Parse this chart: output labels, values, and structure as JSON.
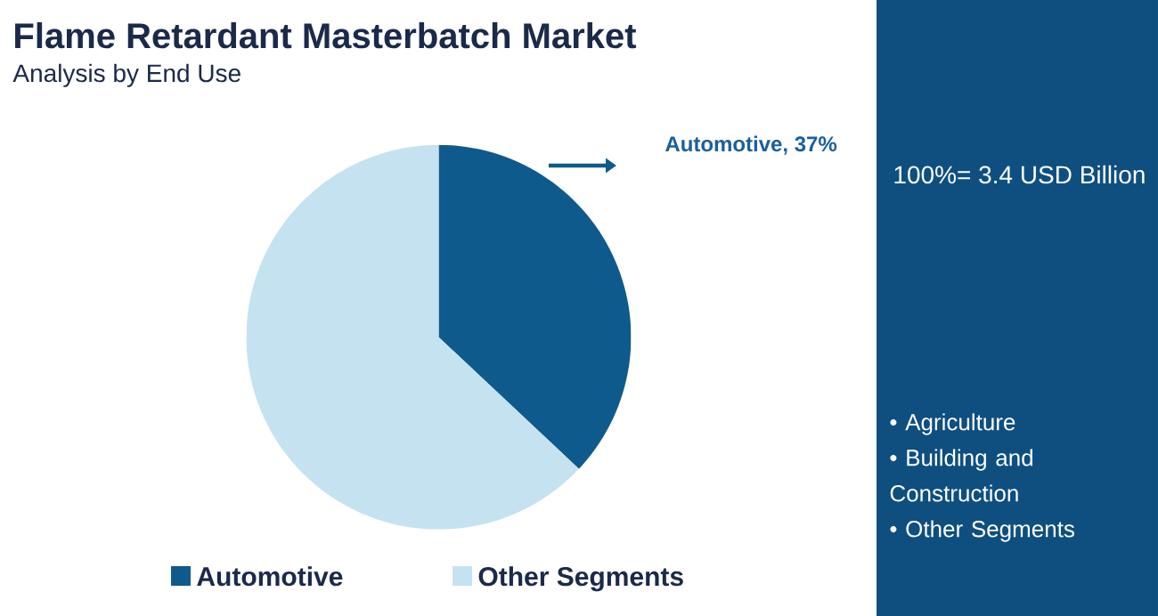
{
  "chart_data": {
    "type": "pie",
    "title": "Flame Retardant Masterbatch Market",
    "subtitle": "Analysis by End Use",
    "categories": [
      "Automotive",
      "Other Segments"
    ],
    "values": [
      37,
      63
    ],
    "colors": [
      "#0f5a8c",
      "#c5e2f0"
    ],
    "value_labels": [
      "Automotive, 37%",
      null
    ],
    "legend": "bottom",
    "annotations": [
      "100%= 3.4 USD Billion",
      "• Agriculture",
      "• Building and Construction",
      "• Other Segments"
    ]
  }
}
